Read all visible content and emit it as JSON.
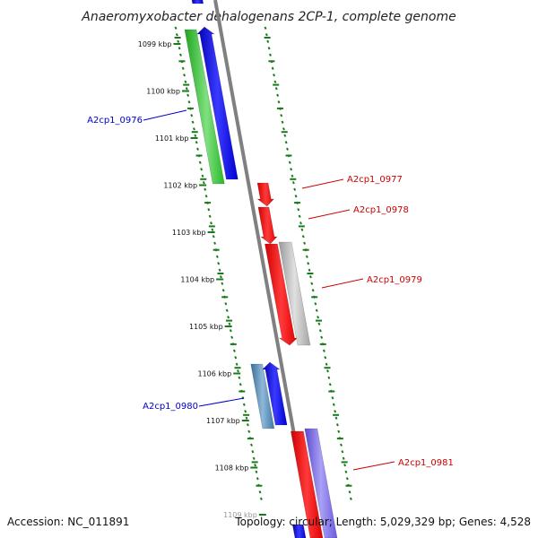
{
  "title": "Anaeromyxobacter dehalogenans 2CP-1, complete genome",
  "footer": {
    "accession": "Accession: NC_011891",
    "topology": "Topology: circular; Length: 5,029,329 bp; Genes: 4,528"
  },
  "ruler": [
    "1099 kbp",
    "1100 kbp",
    "1101 kbp",
    "1102 kbp",
    "1103 kbp",
    "1104 kbp",
    "1105 kbp",
    "1106 kbp",
    "1107 kbp",
    "1108 kbp",
    "1109 kbp"
  ],
  "genes": [
    {
      "label": "A2cp1_0976",
      "strand": "reverse",
      "color": "#0000cc"
    },
    {
      "label": "A2cp1_0977",
      "strand": "forward",
      "color": "#cc0000"
    },
    {
      "label": "A2cp1_0978",
      "strand": "forward",
      "color": "#cc0000"
    },
    {
      "label": "A2cp1_0979",
      "strand": "forward",
      "color": "#cc0000"
    },
    {
      "label": "A2cp1_0980",
      "strand": "reverse",
      "color": "#0000cc"
    },
    {
      "label": "A2cp1_0981",
      "strand": "forward",
      "color": "#cc0000"
    }
  ],
  "colors": {
    "backbone": "#808080",
    "ticks": "#1a7a1a",
    "green_feature": "#33cc33",
    "blue_feature": "#0000ee",
    "red_feature": "#ff0000",
    "grey_feature": "#bbbbbb",
    "steelblue_feature": "#4682b4",
    "purple_feature": "#7b68ee"
  }
}
